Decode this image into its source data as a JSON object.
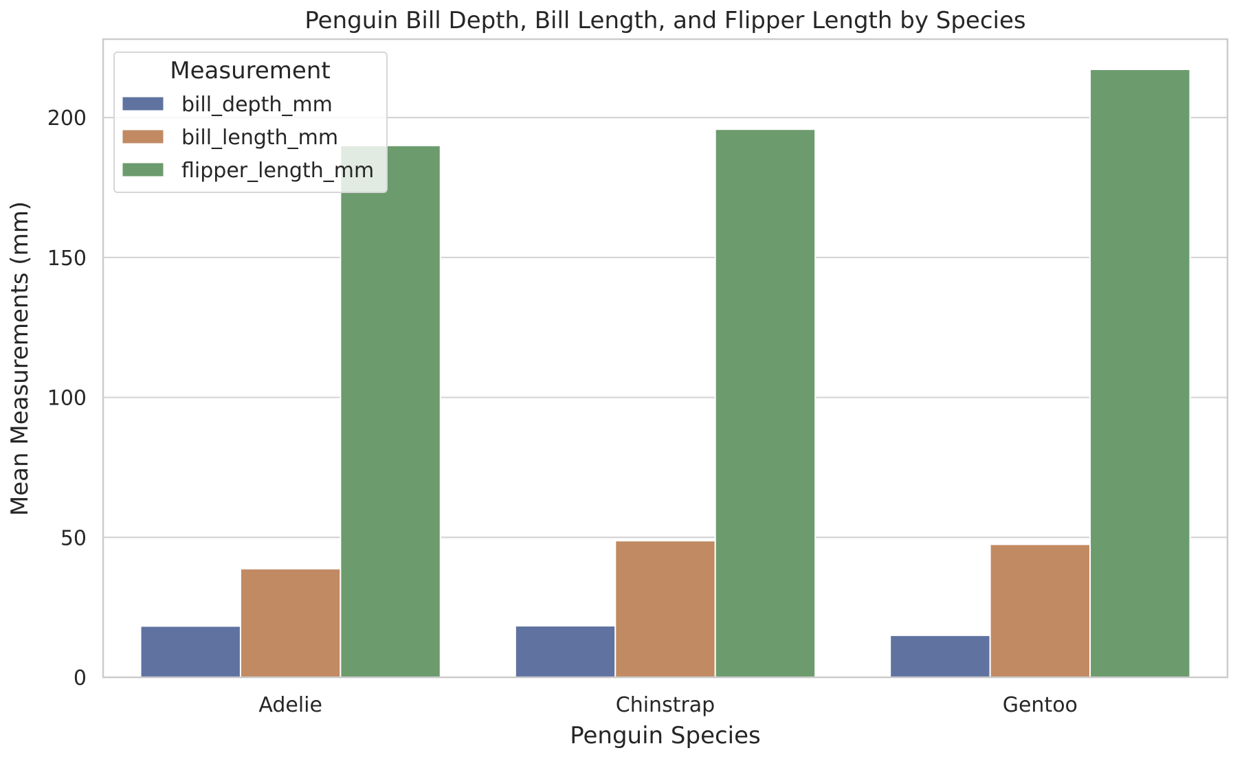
{
  "chart_data": {
    "type": "bar",
    "title": "Penguin Bill Depth, Bill Length, and Flipper Length by Species",
    "xlabel": "Penguin Species",
    "ylabel": "Mean Measurements (mm)",
    "categories": [
      "Adelie",
      "Chinstrap",
      "Gentoo"
    ],
    "series": [
      {
        "name": "bill_depth_mm",
        "values": [
          18.3,
          18.4,
          15.0
        ],
        "color": "#5f72a0"
      },
      {
        "name": "bill_length_mm",
        "values": [
          38.8,
          48.8,
          47.5
        ],
        "color": "#c18a63"
      },
      {
        "name": "flipper_length_mm",
        "values": [
          190.0,
          195.8,
          217.2
        ],
        "color": "#6c9b6e"
      }
    ],
    "ylim": [
      0,
      228
    ],
    "yticks": [
      0,
      50,
      100,
      150,
      200
    ],
    "grid": true,
    "legend": {
      "title": "Measurement",
      "placement": "top-left"
    }
  }
}
